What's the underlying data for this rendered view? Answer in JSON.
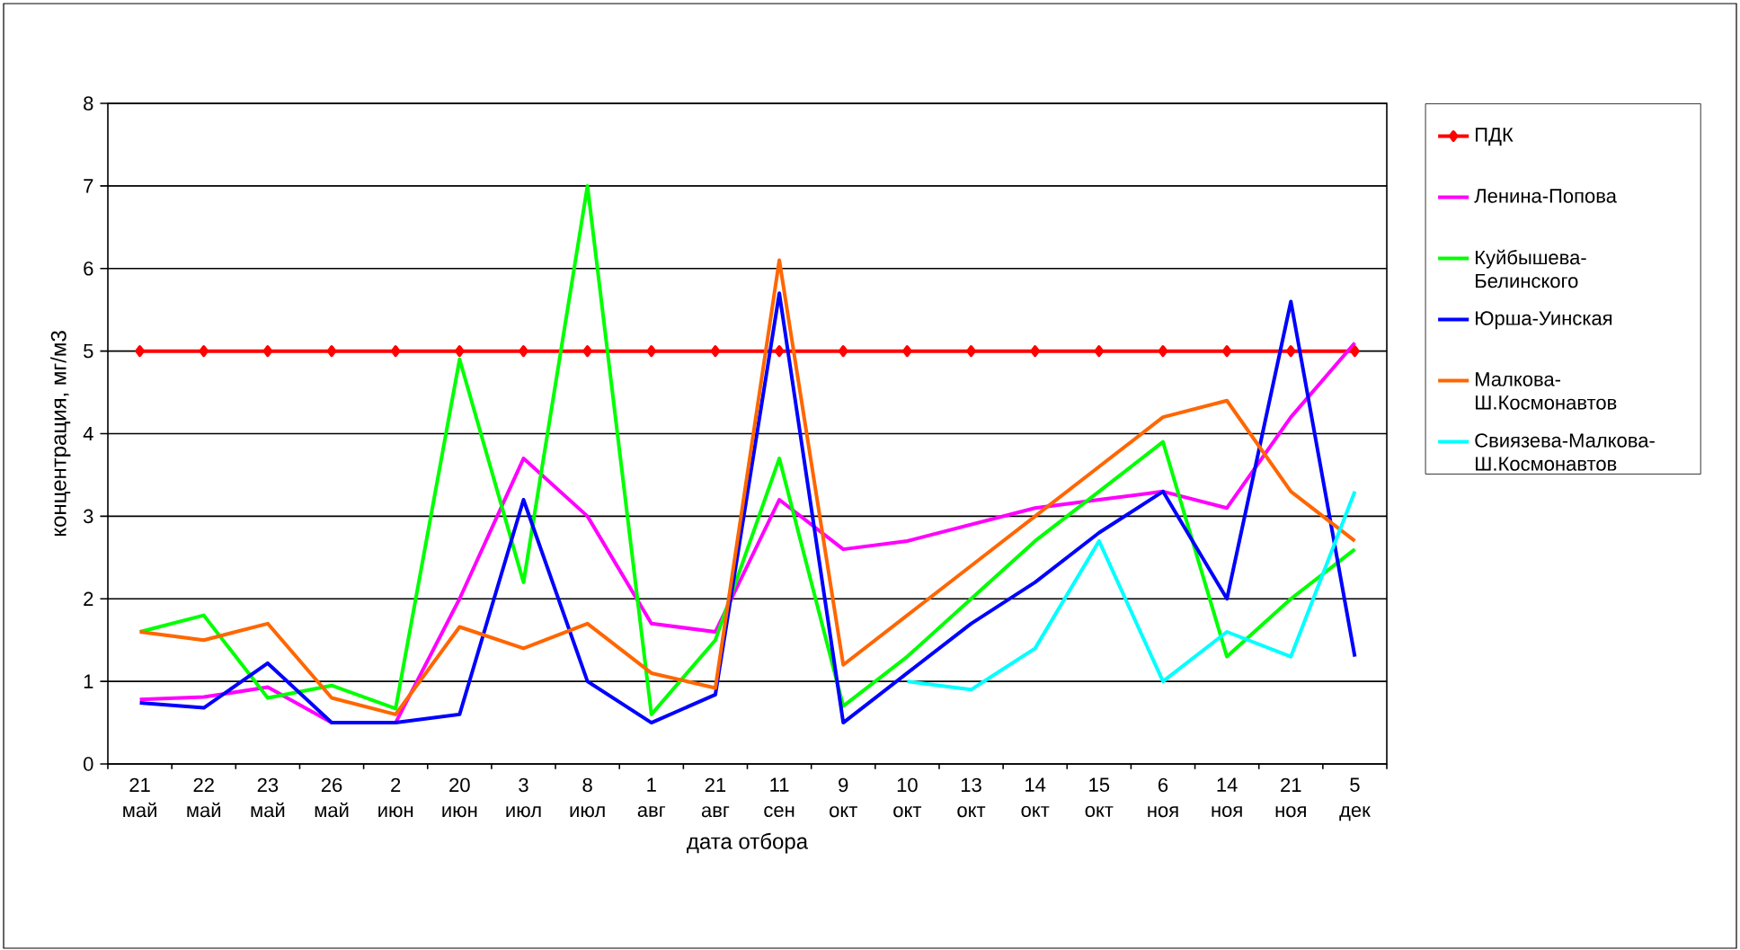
{
  "chart_data": {
    "type": "line",
    "xlabel": "дата отбора",
    "ylabel": "концентрация, мг/м3",
    "categories": [
      "21 май",
      "22 май",
      "23 май",
      "26 май",
      "2 июн",
      "20 июн",
      "3 июл",
      "8 июл",
      "1 авг",
      "21 авг",
      "11 сен",
      "9 окт",
      "10 окт",
      "13 окт",
      "14 окт",
      "15 окт",
      "6 ноя",
      "14 ноя",
      "21 ноя",
      "5 дек"
    ],
    "series": [
      {
        "name": "ПДК",
        "color": "#ff0000",
        "marker": "diamond",
        "values": [
          5,
          5,
          5,
          5,
          5,
          5,
          5,
          5,
          5,
          5,
          5,
          5,
          5,
          5,
          5,
          5,
          5,
          5,
          5,
          5
        ]
      },
      {
        "name": "Ленина-Попова",
        "color": "#ff00ff",
        "values": [
          0.78,
          0.81,
          0.93,
          0.5,
          0.5,
          2.0,
          3.7,
          3.0,
          1.7,
          1.6,
          3.2,
          2.6,
          2.7,
          2.9,
          3.1,
          3.2,
          3.3,
          3.1,
          4.2,
          5.1
        ]
      },
      {
        "name": "Куйбышева-Белинского",
        "color": "#00ff00",
        "values": [
          1.6,
          1.8,
          0.8,
          0.95,
          0.67,
          4.9,
          2.2,
          7.0,
          0.6,
          1.5,
          3.7,
          0.7,
          1.3,
          2.0,
          2.7,
          3.3,
          3.9,
          1.3,
          2.0,
          2.6
        ]
      },
      {
        "name": "Юрша-Уинская",
        "color": "#0000ff",
        "values": [
          0.74,
          0.68,
          1.22,
          0.5,
          0.5,
          0.6,
          3.2,
          1.0,
          0.5,
          0.84,
          5.7,
          0.5,
          1.1,
          1.7,
          2.2,
          2.8,
          3.3,
          2.0,
          5.6,
          1.3
        ]
      },
      {
        "name": "Малкова-Ш.Космонавтов",
        "color": "#ff6600",
        "values": [
          1.6,
          1.5,
          1.7,
          0.8,
          0.6,
          1.66,
          1.4,
          1.7,
          1.1,
          0.92,
          6.1,
          1.2,
          1.8,
          2.4,
          3.0,
          3.6,
          4.2,
          4.4,
          3.3,
          2.7
        ]
      },
      {
        "name": "Свиязева-Малкова-Ш.Космонавтов",
        "color": "#00ffff",
        "values": [
          null,
          null,
          null,
          null,
          null,
          null,
          null,
          null,
          null,
          null,
          null,
          null,
          1.0,
          0.9,
          1.4,
          2.7,
          1.0,
          1.6,
          1.3,
          3.3
        ]
      }
    ],
    "ylim": [
      0,
      8
    ],
    "yticks": [
      0,
      1,
      2,
      3,
      4,
      5,
      6,
      7,
      8
    ],
    "grid": "y",
    "legend": "right"
  }
}
